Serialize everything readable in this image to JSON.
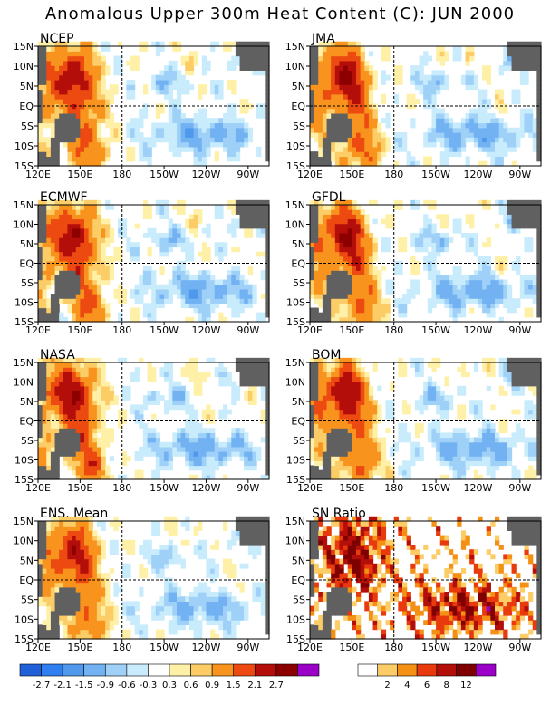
{
  "title": "Anomalous Upper 300m Heat Content (C): JUN 2000",
  "chart_data": [
    {
      "type": "heatmap",
      "title": "NCEP",
      "xlabel": "",
      "ylabel": ""
    },
    {
      "type": "heatmap",
      "title": "JMA",
      "xlabel": "",
      "ylabel": ""
    },
    {
      "type": "heatmap",
      "title": "ECMWF",
      "xlabel": "",
      "ylabel": ""
    },
    {
      "type": "heatmap",
      "title": "GFDL",
      "xlabel": "",
      "ylabel": ""
    },
    {
      "type": "heatmap",
      "title": "NASA",
      "xlabel": "",
      "ylabel": ""
    },
    {
      "type": "heatmap",
      "title": "BOM",
      "xlabel": "",
      "ylabel": ""
    },
    {
      "type": "heatmap",
      "title": "ENS. Mean",
      "xlabel": "",
      "ylabel": ""
    },
    {
      "type": "heatmap",
      "title": "SN Ratio",
      "xlabel": "",
      "ylabel": ""
    }
  ],
  "x_ticks": [
    "120E",
    "150E",
    "180",
    "150W",
    "120W",
    "90W"
  ],
  "y_ticks": [
    "15N",
    "10N",
    "5N",
    "EQ",
    "5S",
    "10S",
    "15S"
  ],
  "anomaly_scale": {
    "labels": [
      "-2.7",
      "-2.1",
      "-1.5",
      "-0.9",
      "-0.6",
      "-0.3",
      "0.3",
      "0.6",
      "0.9",
      "1.5",
      "2.1",
      "2.7"
    ],
    "colors": [
      "#1f5fd8",
      "#2f7ff0",
      "#4f98ec",
      "#72b2f2",
      "#9fd0f8",
      "#c8ecfc",
      "#ffffff",
      "#fff0a8",
      "#fccc66",
      "#f8941e",
      "#ec4a10",
      "#b40e0a",
      "#8c0000",
      "#9a00c8"
    ]
  },
  "sn_scale": {
    "labels": [
      "2",
      "4",
      "6",
      "8",
      "12"
    ],
    "colors": [
      "#ffffff",
      "#fccc66",
      "#f49014",
      "#e83a0c",
      "#b40e0a",
      "#7e0000",
      "#9a00c8"
    ]
  },
  "land_color": "#606060"
}
